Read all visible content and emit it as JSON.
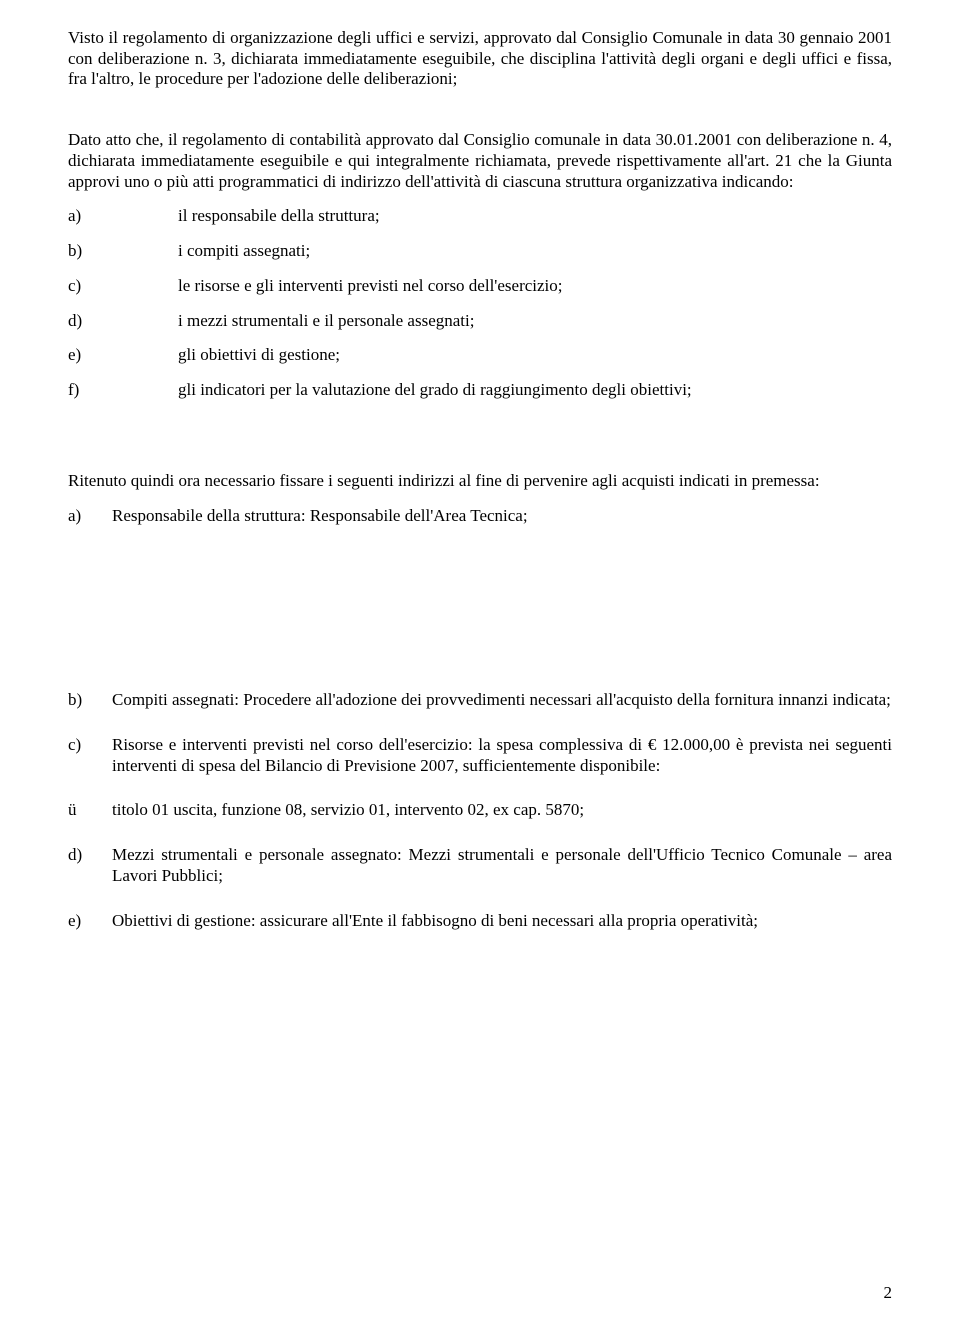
{
  "para1": "Visto il regolamento di organizzazione degli uffici e servizi, approvato dal Consiglio Comunale in data 30 gennaio 2001 con deliberazione n. 3, dichiarata immediatamente eseguibile, che disciplina l'attività degli organi e degli uffici e fissa, fra l'altro, le procedure per l'adozione delle deliberazioni;",
  "para2": "Dato atto che, il regolamento di contabilità approvato dal Consiglio comunale in data 30.01.2001 con deliberazione n. 4, dichiarata immediatamente eseguibile e qui integralmente richiamata, prevede rispettivamente all'art. 21 che la Giunta approvi uno o più atti programmatici di indirizzo dell'attività di ciascuna struttura organizzativa indicando:",
  "list1": {
    "a": {
      "marker": "a)",
      "text": "il responsabile della struttura;"
    },
    "b": {
      "marker": "b)",
      "text": "i compiti assegnati;"
    },
    "c": {
      "marker": "c)",
      "text": "le risorse e gli interventi previsti nel corso dell'esercizio;"
    },
    "d": {
      "marker": "d)",
      "text": "i mezzi strumentali e il personale assegnati;"
    },
    "e": {
      "marker": "e)",
      "text": "gli obiettivi di gestione;"
    },
    "f": {
      "marker": "f)",
      "text": "gli indicatori per la valutazione del grado di raggiungimento degli obiettivi;"
    }
  },
  "para3": "Ritenuto quindi ora necessario fissare i seguenti indirizzi al fine di pervenire agli acquisti indicati in premessa:",
  "list2": {
    "a": {
      "marker": "a)",
      "text": "Responsabile della struttura: Responsabile dell'Area Tecnica;"
    },
    "b": {
      "marker": "b)",
      "text": "Compiti assegnati: Procedere all'adozione dei provvedimenti necessari all'acquisto della fornitura innanzi indicata;"
    },
    "c": {
      "marker": "c)",
      "text": "Risorse e interventi previsti nel corso dell'esercizio: la spesa complessiva di € 12.000,00 è prevista nei seguenti interventi di spesa del Bilancio di Previsione 2007, sufficientemente disponibile:"
    },
    "u": {
      "marker": "ü",
      "text": "titolo 01 uscita, funzione 08, servizio 01, intervento 02, ex cap. 5870;"
    },
    "d": {
      "marker": "d)",
      "text": "Mezzi strumentali e personale assegnato: Mezzi strumentali e personale dell'Ufficio Tecnico Comunale – area Lavori Pubblici;"
    },
    "e": {
      "marker": "e)",
      "text": "Obiettivi di gestione: assicurare all'Ente il fabbisogno di beni necessari alla propria operatività;"
    }
  },
  "pageNumber": "2"
}
